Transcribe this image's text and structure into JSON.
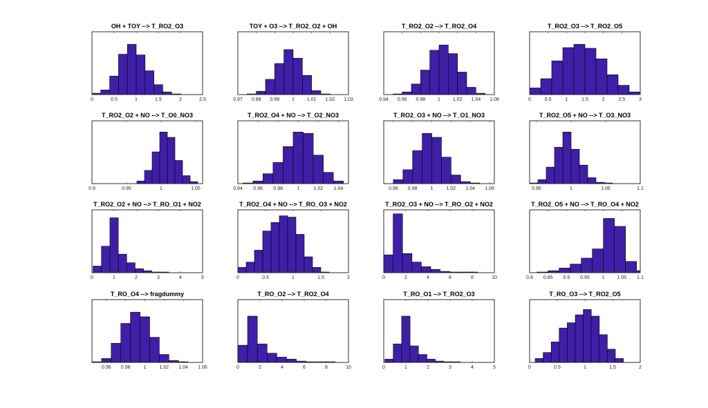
{
  "bar_color": "#3f1ea8",
  "chart_data": [
    {
      "type": "bar",
      "title": "OH + TOY --> T_RO2_O3",
      "xlim": [
        0,
        2.5
      ],
      "xticks": [
        0,
        0.5,
        1,
        1.5,
        2,
        2.5
      ],
      "xticklabels": [
        "0",
        "0.5",
        "1",
        "1.5",
        "2",
        "2.5"
      ],
      "bin_start": 0,
      "bin_width": 0.2,
      "values": [
        2,
        7,
        28,
        61,
        76,
        60,
        36,
        15,
        4,
        1
      ]
    },
    {
      "type": "bar",
      "title": "TOY + O3 --> T_RO2_O2 + OH",
      "xlim": [
        0.97,
        1.03
      ],
      "xticks": [
        0.97,
        0.98,
        0.99,
        1,
        1.01,
        1.02,
        1.03
      ],
      "xticklabels": [
        "0.97",
        "0.98",
        "0.99",
        "1",
        "1.01",
        "1.02",
        "1.03"
      ],
      "bin_start": 0.975,
      "bin_width": 0.005,
      "values": [
        1,
        5,
        23,
        47,
        68,
        55,
        29,
        6,
        1
      ]
    },
    {
      "type": "bar",
      "title": "T_RO2_O2 --> T_RO2_O4",
      "xlim": [
        0.94,
        1.06
      ],
      "xticks": [
        0.94,
        0.96,
        0.98,
        1,
        1.02,
        1.04,
        1.06
      ],
      "xticklabels": [
        "0.94",
        "0.96",
        "0.98",
        "1",
        "1.02",
        "1.04",
        "1.06"
      ],
      "bin_start": 0.95,
      "bin_width": 0.01,
      "values": [
        1,
        4,
        16,
        37,
        67,
        75,
        62,
        34,
        11,
        2
      ]
    },
    {
      "type": "bar",
      "title": "T_RO2_O3 --> T_RO2_O5",
      "xlim": [
        0,
        3
      ],
      "xticks": [
        0,
        0.5,
        1,
        1.5,
        2,
        2.5,
        3
      ],
      "xticklabels": [
        "0",
        "0.5",
        "1",
        "1.5",
        "2",
        "2.5",
        "3"
      ],
      "bin_start": 0,
      "bin_width": 0.3,
      "values": [
        10,
        24,
        51,
        71,
        76,
        70,
        54,
        30,
        14,
        4
      ]
    },
    {
      "type": "bar",
      "title": "T_RO2_O2 + NO --> T_O0_NO3",
      "xlim": [
        0.9,
        1.06
      ],
      "xticks": [
        0.9,
        0.95,
        1,
        1.05
      ],
      "xticklabels": [
        "0.9",
        "0.95",
        "1",
        "1.05"
      ],
      "bin_start": 0.965,
      "bin_width": 0.011,
      "values": [
        4,
        20,
        48,
        78,
        70,
        35,
        12,
        3
      ]
    },
    {
      "type": "bar",
      "title": "T_RO2_O4 + NO --> T_O2_NO3",
      "xlim": [
        0.94,
        1.05
      ],
      "xticks": [
        0.94,
        0.96,
        0.98,
        1,
        1.02,
        1.04
      ],
      "xticklabels": [
        "0.94",
        "0.96",
        "0.98",
        "1",
        "1.02",
        "1.04"
      ],
      "bin_start": 0.945,
      "bin_width": 0.01,
      "values": [
        1,
        4,
        15,
        32,
        56,
        78,
        76,
        43,
        17,
        4
      ]
    },
    {
      "type": "bar",
      "title": "T_RO2_O3 + NO --> T_O1_NO3",
      "xlim": [
        0.95,
        1.065
      ],
      "xticks": [
        0.96,
        0.98,
        1,
        1.02,
        1.04,
        1.06
      ],
      "xticklabels": [
        "0.96",
        "0.98",
        "1",
        "1.02",
        "1.04",
        "1.06"
      ],
      "bin_start": 0.96,
      "bin_width": 0.01,
      "values": [
        6,
        21,
        50,
        76,
        70,
        40,
        13,
        3,
        1
      ]
    },
    {
      "type": "bar",
      "title": "T_RO2_O5 + NO --> T_O3_NO3",
      "xlim": [
        0.94,
        1.1
      ],
      "xticks": [
        0.95,
        1,
        1.05,
        1.1
      ],
      "xticklabels": [
        "0.95",
        "1",
        "1.05",
        "1.1"
      ],
      "bin_start": 0.94,
      "bin_width": 0.012,
      "values": [
        1,
        6,
        25,
        55,
        78,
        52,
        28,
        9,
        2,
        1
      ]
    },
    {
      "type": "bar",
      "title": "T_RO2_O2 + NO --> T_RO_O1 + NO2",
      "xlim": [
        0,
        5
      ],
      "xticks": [
        0,
        1,
        2,
        3,
        4,
        5
      ],
      "xticklabels": [
        "0",
        "1",
        "2",
        "3",
        "4",
        "5"
      ],
      "bin_start": 0.05,
      "bin_width": 0.38,
      "values": [
        10,
        40,
        83,
        28,
        15,
        6,
        3,
        1,
        1
      ]
    },
    {
      "type": "bar",
      "title": "T_RO2_O4 + NO --> T_RO_O3 + NO2",
      "xlim": [
        0,
        2
      ],
      "xticks": [
        0,
        0.5,
        1,
        1.5,
        2
      ],
      "xticklabels": [
        "0",
        "0.5",
        "1",
        "1.5",
        "2"
      ],
      "bin_start": 0,
      "bin_width": 0.15,
      "values": [
        8,
        16,
        34,
        63,
        76,
        86,
        84,
        58,
        24,
        8,
        1
      ]
    },
    {
      "type": "bar",
      "title": "T_RO2_O3 + NO --> T_RO_O2 + NO2",
      "xlim": [
        0,
        10
      ],
      "xticks": [
        0,
        2,
        4,
        6,
        8,
        10
      ],
      "xticklabels": [
        "0",
        "2",
        "4",
        "6",
        "8",
        "10"
      ],
      "bin_start": 0,
      "bin_width": 0.85,
      "values": [
        27,
        89,
        29,
        16,
        9,
        5,
        2,
        1,
        1,
        1
      ]
    },
    {
      "type": "bar",
      "title": "T_RO2_O5 + NO --> T_RO_O4 + NO2",
      "xlim": [
        0.8,
        1.1
      ],
      "xticks": [
        0.8,
        0.85,
        0.9,
        0.95,
        1,
        1.05,
        1.1
      ],
      "xticklabels": [
        "0.8",
        "0.85",
        "0.9",
        "0.95",
        "1",
        "1.05",
        "1.1"
      ],
      "bin_start": 0.82,
      "bin_width": 0.03,
      "values": [
        1,
        3,
        7,
        13,
        22,
        36,
        82,
        70,
        17,
        3
      ]
    },
    {
      "type": "bar",
      "title": "T_RO_O4 --> fragdummy",
      "xlim": [
        0.945,
        1.06
      ],
      "xticks": [
        0.96,
        0.98,
        1,
        1.02,
        1.04,
        1.06
      ],
      "xticklabels": [
        "0.96",
        "0.98",
        "1",
        "1.02",
        "1.04",
        "1.06"
      ],
      "bin_start": 0.945,
      "bin_width": 0.01,
      "values": [
        1,
        6,
        29,
        59,
        76,
        69,
        38,
        12,
        3,
        1
      ]
    },
    {
      "type": "bar",
      "title": "T_RO_O2 --> T_RO2_O4",
      "xlim": [
        0,
        10
      ],
      "xticks": [
        0,
        2,
        4,
        6,
        8,
        10
      ],
      "xticklabels": [
        "0",
        "2",
        "4",
        "6",
        "8",
        "10"
      ],
      "bin_start": 0,
      "bin_width": 0.88,
      "values": [
        26,
        70,
        28,
        14,
        8,
        5,
        2,
        1,
        1,
        1
      ]
    },
    {
      "type": "bar",
      "title": "T_RO_O1 --> T_RO2_O3",
      "xlim": [
        0,
        5
      ],
      "xticks": [
        0,
        1,
        2,
        3,
        4,
        5
      ],
      "xticklabels": [
        "0",
        "1",
        "2",
        "3",
        "4",
        "5"
      ],
      "bin_start": 0.05,
      "bin_width": 0.38,
      "values": [
        5,
        28,
        70,
        25,
        12,
        5,
        2,
        1,
        1
      ]
    },
    {
      "type": "bar",
      "title": "T_RO_O3 --> T_RO2_O5",
      "xlim": [
        0,
        2
      ],
      "xticks": [
        0,
        0.5,
        1,
        1.5,
        2
      ],
      "xticklabels": [
        "0",
        "0.5",
        "1",
        "1.5",
        "2"
      ],
      "bin_start": 0.1,
      "bin_width": 0.145,
      "values": [
        6,
        15,
        31,
        52,
        60,
        72,
        80,
        70,
        42,
        20,
        6
      ]
    }
  ]
}
